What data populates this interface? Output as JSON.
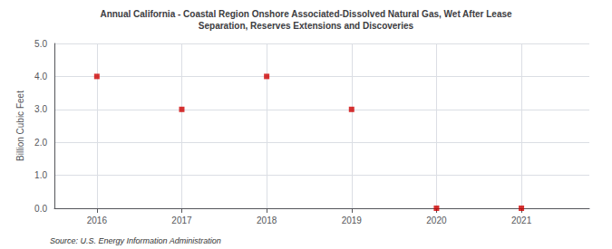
{
  "chart_data": {
    "type": "scatter",
    "title": "Annual California - Coastal Region Onshore Associated-Dissolved Natural Gas, Wet After Lease\nSeparation, Reserves Extensions and Discoveries",
    "ylabel": "Billion Cubic Feet",
    "source": "Source: U.S. Energy Information Administration",
    "x": [
      2016,
      2017,
      2018,
      2019,
      2020,
      2021
    ],
    "values": [
      4.0,
      3.0,
      4.0,
      3.0,
      0.0,
      0.0
    ],
    "color": "#cc0000",
    "marker": "square",
    "xlim": [
      2015.5,
      2021.8
    ],
    "xticks": [
      2016,
      2017,
      2018,
      2019,
      2020,
      2021
    ],
    "ylim": [
      0.0,
      5.0
    ],
    "yticks": [
      {
        "value": 0,
        "label": "0.0"
      },
      {
        "value": 1,
        "label": "1.0"
      },
      {
        "value": 2,
        "label": "2.0"
      },
      {
        "value": 3,
        "label": "3.0"
      },
      {
        "value": 4,
        "label": "4.0"
      },
      {
        "value": 5,
        "label": "5.0"
      }
    ],
    "grid": true
  }
}
